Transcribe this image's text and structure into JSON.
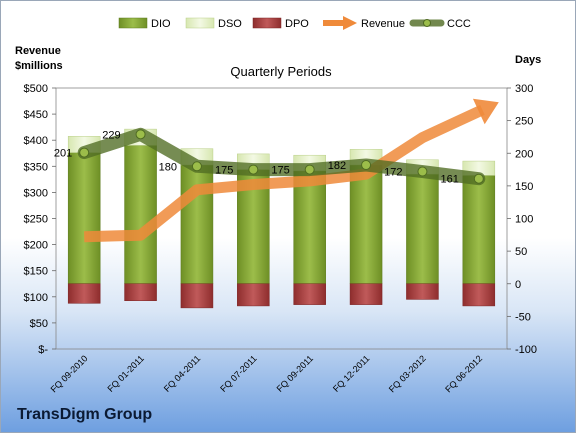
{
  "company": "TransDigm Group",
  "chart_data": {
    "type": "bar",
    "title": "Quarterly Periods",
    "ylabel_left": "Revenue\n$millions",
    "ylabel_right": "Days",
    "categories": [
      "FQ 09-2010",
      "FQ 01-2011",
      "FQ 04-2011",
      "FQ 07-2011",
      "FQ 09-2011",
      "FQ 12-2011",
      "FQ 03-2012",
      "FQ 06-2012"
    ],
    "ylim_left": [
      0,
      500
    ],
    "yticks_left": [
      "$-",
      "$50",
      "$100",
      "$150",
      "$200",
      "$250",
      "$300",
      "$350",
      "$400",
      "$450",
      "$500"
    ],
    "ylim_right": [
      -100,
      300
    ],
    "yticks_right": [
      "-100",
      "-50",
      "0",
      "50",
      "100",
      "150",
      "200",
      "250",
      "300"
    ],
    "series": [
      {
        "name": "DIO",
        "axis": "right",
        "kind": "bar",
        "color": "#7f9f2f",
        "values": [
          201,
          212,
          182,
          175,
          173,
          182,
          168,
          166
        ]
      },
      {
        "name": "DSO",
        "axis": "right",
        "kind": "bar-stack",
        "color": "#e4f0c4",
        "values": [
          25,
          25,
          25,
          24,
          24,
          24,
          22,
          22
        ]
      },
      {
        "name": "DPO",
        "axis": "right",
        "kind": "bar-negative",
        "color": "#a63a3a",
        "values": [
          -30,
          -26,
          -37,
          -34,
          -32,
          -32,
          -24,
          -34
        ]
      },
      {
        "name": "Revenue",
        "axis": "left",
        "kind": "arrow-line",
        "color": "#ef8a3a",
        "values": [
          215,
          218,
          305,
          315,
          322,
          335,
          405,
          455
        ]
      },
      {
        "name": "CCC",
        "axis": "right",
        "kind": "line",
        "color": "#5d7a2a",
        "values": [
          201,
          229,
          180,
          175,
          175,
          182,
          172,
          161
        ]
      }
    ],
    "data_labels": [
      "201",
      "229",
      "180",
      "175",
      "175",
      "182",
      "172",
      "161"
    ],
    "legend_position": "top"
  }
}
